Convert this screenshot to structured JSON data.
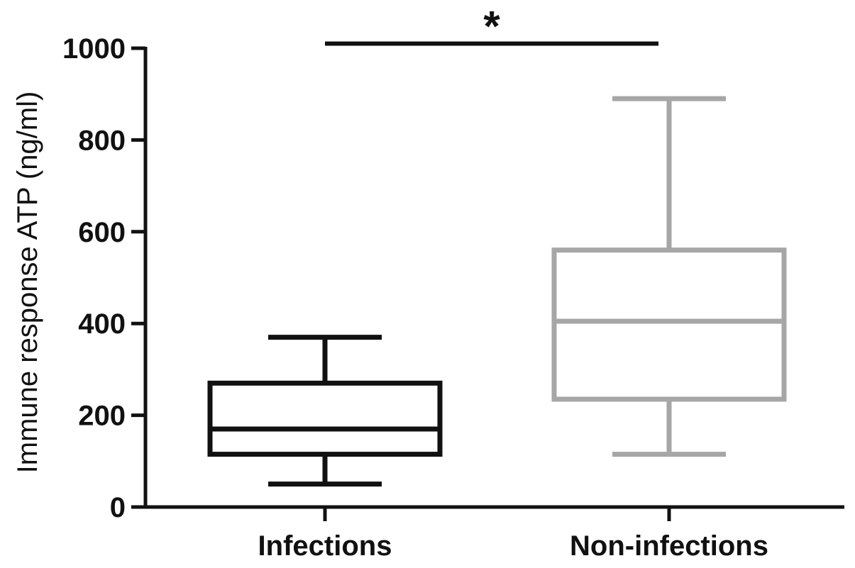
{
  "chart_data": {
    "type": "box",
    "title": "",
    "xlabel": "",
    "ylabel": "Immune response ATP (ng/ml)",
    "ylim": [
      0,
      1000
    ],
    "yticks": [
      0,
      200,
      400,
      600,
      800,
      1000
    ],
    "grid": false,
    "categories": [
      "Infections",
      "Non-infections"
    ],
    "series": [
      {
        "category": "Infections",
        "color": "#111111",
        "min": 50,
        "q1": 115,
        "median": 170,
        "q3": 270,
        "max": 370
      },
      {
        "category": "Non-infections",
        "color": "#a6a6a6",
        "min": 115,
        "q1": 235,
        "median": 405,
        "q3": 560,
        "max": 890
      }
    ],
    "annotations": [
      {
        "type": "significance-bar",
        "between": [
          "Infections",
          "Non-infections"
        ],
        "y": 1010,
        "label": "*"
      }
    ]
  }
}
